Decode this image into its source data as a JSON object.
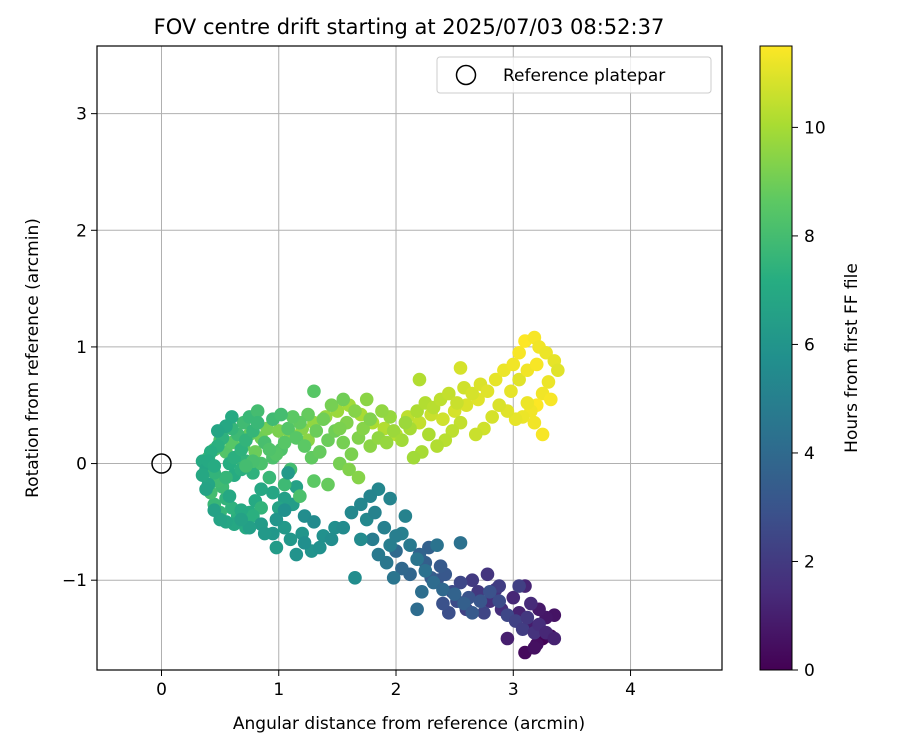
{
  "chart_data": {
    "type": "scatter",
    "title": "FOV centre drift starting at 2025/07/03 08:52:37",
    "xlabel": "Angular distance from reference (arcmin)",
    "ylabel": "Rotation from reference (arcmin)",
    "xlim": [
      -0.55,
      4.78
    ],
    "ylim": [
      -1.77,
      3.58
    ],
    "xticks": [
      0,
      1,
      2,
      3,
      4
    ],
    "yticks": [
      -1,
      0,
      1,
      2,
      3
    ],
    "grid": true,
    "legend": {
      "position": "upper right",
      "entries": [
        "Reference platepar"
      ]
    },
    "reference_point": {
      "x": 0,
      "y": 0,
      "marker": "open-circle"
    },
    "colorbar": {
      "label": "Hours from first FF file",
      "colormap": "viridis",
      "range": [
        0,
        11.5
      ],
      "ticks": [
        0,
        2,
        4,
        6,
        8,
        10
      ]
    },
    "points": [
      [
        3.25,
        -1.5,
        0.1
      ],
      [
        3.32,
        -1.48,
        0.2
      ],
      [
        3.1,
        -1.62,
        0.3
      ],
      [
        3.2,
        -1.55,
        0.4
      ],
      [
        3.18,
        -1.58,
        0.5
      ],
      [
        3.35,
        -1.3,
        0.6
      ],
      [
        3.28,
        -1.32,
        0.7
      ],
      [
        3.22,
        -1.25,
        0.8
      ],
      [
        3.15,
        -1.4,
        0.9
      ],
      [
        2.95,
        -1.5,
        1.0
      ],
      [
        3.05,
        -1.28,
        1.1
      ],
      [
        3.1,
        -1.05,
        1.2
      ],
      [
        3.0,
        -1.15,
        1.3
      ],
      [
        3.15,
        -1.2,
        1.4
      ],
      [
        2.9,
        -1.25,
        1.5
      ],
      [
        2.8,
        -1.18,
        1.6
      ],
      [
        2.85,
        -1.08,
        1.7
      ],
      [
        2.78,
        -0.95,
        1.8
      ],
      [
        2.7,
        -1.1,
        1.9
      ],
      [
        2.65,
        -1.0,
        2.0
      ],
      [
        2.88,
        -1.05,
        2.1
      ],
      [
        3.05,
        -1.05,
        2.2
      ],
      [
        2.6,
        -1.25,
        2.3
      ],
      [
        2.75,
        -1.28,
        2.4
      ],
      [
        2.55,
        -1.02,
        2.5
      ],
      [
        2.48,
        -1.1,
        2.6
      ],
      [
        2.52,
        -1.18,
        2.7
      ],
      [
        2.45,
        -1.28,
        2.8
      ],
      [
        2.4,
        -1.2,
        2.9
      ],
      [
        2.62,
        -1.15,
        3.0
      ],
      [
        2.35,
        -1.0,
        3.1
      ],
      [
        2.42,
        -0.95,
        3.2
      ],
      [
        2.38,
        -0.88,
        3.3
      ],
      [
        2.3,
        -0.98,
        3.4
      ],
      [
        2.25,
        -0.85,
        3.5
      ],
      [
        2.28,
        -0.72,
        3.6
      ],
      [
        2.2,
        -0.78,
        3.7
      ],
      [
        2.12,
        -0.95,
        3.8
      ],
      [
        2.05,
        -0.9,
        3.9
      ],
      [
        2.0,
        -0.75,
        4.0
      ],
      [
        2.18,
        -1.25,
        4.1
      ],
      [
        2.22,
        -1.1,
        4.2
      ],
      [
        2.55,
        -0.68,
        4.3
      ],
      [
        2.35,
        -0.7,
        4.4
      ],
      [
        1.98,
        -0.98,
        4.5
      ],
      [
        1.92,
        -0.85,
        4.6
      ],
      [
        1.85,
        -0.78,
        4.7
      ],
      [
        1.8,
        -0.65,
        4.8
      ],
      [
        1.95,
        -0.7,
        4.9
      ],
      [
        2.05,
        -0.6,
        5.0
      ],
      [
        2.08,
        -0.45,
        5.1
      ],
      [
        1.95,
        -0.3,
        5.2
      ],
      [
        1.85,
        -0.22,
        5.3
      ],
      [
        1.75,
        -0.48,
        5.4
      ],
      [
        1.7,
        -0.65,
        5.5
      ],
      [
        1.65,
        -0.98,
        5.6
      ],
      [
        1.48,
        -0.55,
        5.7
      ],
      [
        1.38,
        -0.62,
        5.8
      ],
      [
        1.28,
        -0.75,
        5.9
      ],
      [
        1.2,
        -0.6,
        6.0
      ],
      [
        1.1,
        -0.65,
        6.1
      ],
      [
        1.05,
        -0.55,
        6.2
      ],
      [
        0.98,
        -0.72,
        6.3
      ],
      [
        1.12,
        -0.35,
        6.4
      ],
      [
        1.05,
        -0.3,
        6.5
      ],
      [
        1.15,
        -0.2,
        6.6
      ],
      [
        1.0,
        -0.38,
        6.7
      ],
      [
        0.95,
        -0.25,
        6.8
      ],
      [
        0.85,
        -0.22,
        6.9
      ],
      [
        0.8,
        -0.32,
        7.0
      ],
      [
        0.75,
        -0.42,
        7.1
      ],
      [
        0.7,
        -0.5,
        7.2
      ],
      [
        0.65,
        -0.45,
        7.3
      ],
      [
        0.6,
        -0.38,
        7.4
      ],
      [
        0.55,
        -0.3,
        7.5
      ],
      [
        0.5,
        -0.42,
        7.6
      ],
      [
        0.45,
        -0.35,
        7.7
      ],
      [
        0.52,
        -0.2,
        7.8
      ],
      [
        0.48,
        -0.15,
        7.9
      ],
      [
        0.42,
        -0.25,
        8.0
      ],
      [
        0.4,
        0.05,
        8.1
      ],
      [
        0.45,
        0.12,
        8.2
      ],
      [
        0.5,
        0.2,
        8.3
      ],
      [
        0.55,
        0.1,
        8.4
      ],
      [
        0.6,
        0.18,
        8.5
      ],
      [
        0.65,
        0.05,
        8.6
      ],
      [
        0.7,
        0.15,
        8.7
      ],
      [
        0.75,
        0.25,
        8.8
      ],
      [
        0.8,
        0.1,
        8.9
      ],
      [
        0.85,
        0.22,
        9.0
      ],
      [
        0.9,
        0.3,
        9.1
      ],
      [
        1.0,
        0.28,
        9.2
      ],
      [
        1.1,
        0.25,
        9.3
      ],
      [
        1.2,
        0.3,
        9.4
      ],
      [
        1.25,
        0.2,
        9.5
      ],
      [
        1.3,
        0.35,
        9.6
      ],
      [
        1.4,
        0.4,
        9.7
      ],
      [
        1.5,
        0.45,
        9.8
      ],
      [
        1.6,
        0.5,
        9.9
      ],
      [
        1.7,
        0.42,
        10.0
      ],
      [
        1.8,
        0.35,
        10.1
      ],
      [
        1.9,
        0.3,
        10.2
      ],
      [
        2.0,
        0.25,
        10.3
      ],
      [
        2.1,
        0.4,
        10.4
      ],
      [
        2.2,
        0.35,
        10.5
      ],
      [
        2.3,
        0.42,
        10.6
      ],
      [
        2.4,
        0.38,
        10.7
      ],
      [
        2.5,
        0.45,
        10.8
      ],
      [
        2.6,
        0.5,
        10.9
      ],
      [
        2.7,
        0.55,
        11.0
      ],
      [
        0.35,
        0.02,
        7.0
      ],
      [
        0.38,
        -0.05,
        6.8
      ],
      [
        0.58,
        0.0,
        7.2
      ],
      [
        0.62,
        -0.1,
        7.1
      ],
      [
        0.68,
        -0.05,
        7.3
      ],
      [
        0.72,
        0.02,
        7.5
      ],
      [
        0.78,
        -0.08,
        7.4
      ],
      [
        0.55,
        -0.12,
        7.6
      ],
      [
        0.45,
        -0.08,
        7.5
      ],
      [
        0.65,
        0.25,
        7.8
      ],
      [
        0.7,
        0.35,
        7.9
      ],
      [
        0.75,
        0.4,
        7.7
      ],
      [
        0.82,
        0.45,
        8.0
      ],
      [
        0.6,
        0.3,
        7.6
      ],
      [
        0.52,
        0.22,
        7.4
      ],
      [
        0.48,
        0.15,
        7.3
      ],
      [
        0.42,
        0.1,
        7.2
      ],
      [
        0.88,
        0.18,
        8.1
      ],
      [
        0.95,
        0.05,
        8.2
      ],
      [
        1.02,
        0.12,
        8.3
      ],
      [
        1.08,
        0.3,
        8.4
      ],
      [
        1.15,
        0.22,
        8.5
      ],
      [
        1.22,
        0.15,
        8.6
      ],
      [
        1.28,
        0.05,
        8.7
      ],
      [
        1.35,
        0.1,
        8.8
      ],
      [
        1.42,
        0.2,
        8.9
      ],
      [
        1.48,
        0.28,
        9.0
      ],
      [
        1.55,
        0.18,
        9.1
      ],
      [
        1.62,
        0.08,
        9.2
      ],
      [
        1.68,
        0.22,
        9.3
      ],
      [
        1.72,
        0.3,
        9.4
      ],
      [
        1.78,
        0.15,
        9.5
      ],
      [
        1.85,
        0.22,
        9.6
      ],
      [
        1.92,
        0.18,
        9.7
      ],
      [
        1.98,
        0.28,
        9.8
      ],
      [
        2.05,
        0.2,
        9.9
      ],
      [
        2.12,
        0.3,
        10.0
      ],
      [
        2.18,
        0.45,
        10.1
      ],
      [
        2.25,
        0.52,
        10.2
      ],
      [
        2.32,
        0.48,
        10.3
      ],
      [
        2.38,
        0.55,
        10.4
      ],
      [
        2.45,
        0.6,
        10.5
      ],
      [
        2.52,
        0.52,
        10.6
      ],
      [
        2.58,
        0.65,
        10.7
      ],
      [
        2.65,
        0.6,
        10.8
      ],
      [
        2.72,
        0.68,
        10.9
      ],
      [
        2.78,
        0.62,
        11.0
      ],
      [
        2.85,
        0.72,
        11.1
      ],
      [
        2.92,
        0.8,
        11.2
      ],
      [
        3.0,
        0.85,
        11.3
      ],
      [
        3.05,
        0.95,
        11.4
      ],
      [
        3.1,
        1.05,
        11.5
      ],
      [
        3.18,
        1.08,
        11.4
      ],
      [
        3.22,
        1.0,
        11.3
      ],
      [
        3.28,
        0.95,
        11.2
      ],
      [
        3.35,
        0.88,
        11.1
      ],
      [
        3.38,
        0.8,
        11.0
      ],
      [
        3.3,
        0.7,
        11.2
      ],
      [
        3.25,
        0.6,
        11.3
      ],
      [
        3.32,
        0.55,
        11.4
      ],
      [
        3.2,
        0.5,
        11.5
      ],
      [
        3.15,
        0.45,
        11.3
      ],
      [
        3.08,
        0.4,
        11.2
      ],
      [
        3.02,
        0.38,
        11.1
      ],
      [
        2.95,
        0.45,
        11.0
      ],
      [
        2.88,
        0.5,
        10.9
      ],
      [
        2.82,
        0.4,
        10.8
      ],
      [
        2.75,
        0.3,
        10.7
      ],
      [
        2.68,
        0.25,
        10.6
      ],
      [
        3.25,
        0.25,
        11.4
      ],
      [
        3.18,
        0.35,
        11.3
      ],
      [
        3.12,
        0.52,
        11.2
      ],
      [
        2.98,
        0.62,
        11.1
      ],
      [
        3.05,
        0.72,
        11.0
      ],
      [
        3.12,
        0.8,
        11.3
      ],
      [
        3.2,
        0.85,
        11.4
      ],
      [
        2.55,
        0.35,
        10.5
      ],
      [
        2.48,
        0.28,
        10.4
      ],
      [
        2.42,
        0.2,
        10.3
      ],
      [
        2.35,
        0.15,
        10.2
      ],
      [
        2.28,
        0.25,
        10.1
      ],
      [
        2.22,
        0.1,
        10.0
      ],
      [
        2.15,
        0.05,
        9.9
      ],
      [
        2.08,
        0.35,
        9.8
      ],
      [
        1.95,
        0.4,
        9.7
      ],
      [
        1.88,
        0.45,
        9.6
      ],
      [
        1.75,
        0.55,
        9.5
      ],
      [
        1.65,
        0.45,
        9.4
      ],
      [
        1.58,
        0.35,
        9.3
      ],
      [
        1.52,
        0.3,
        9.2
      ],
      [
        1.45,
        0.5,
        9.1
      ],
      [
        1.38,
        0.38,
        9.0
      ],
      [
        1.32,
        0.28,
        8.9
      ],
      [
        1.25,
        0.42,
        8.8
      ],
      [
        1.18,
        0.35,
        8.7
      ],
      [
        1.12,
        0.4,
        8.6
      ],
      [
        1.05,
        0.18,
        8.5
      ],
      [
        0.98,
        0.08,
        8.4
      ],
      [
        0.92,
        0.12,
        8.3
      ],
      [
        0.85,
        0.0,
        8.2
      ],
      [
        0.78,
        0.02,
        8.1
      ],
      [
        0.72,
        -0.02,
        8.0
      ],
      [
        1.3,
        0.62,
        8.5
      ],
      [
        1.55,
        0.55,
        9.0
      ],
      [
        1.78,
        0.38,
        9.3
      ],
      [
        2.2,
        0.72,
        10.2
      ],
      [
        2.55,
        0.82,
        10.8
      ],
      [
        1.52,
        0.0,
        9.1
      ],
      [
        1.6,
        -0.05,
        9.3
      ],
      [
        1.68,
        -0.12,
        9.4
      ],
      [
        1.42,
        -0.18,
        8.8
      ],
      [
        1.3,
        -0.15,
        8.6
      ],
      [
        1.18,
        -0.28,
        8.2
      ],
      [
        1.1,
        -0.05,
        8.0
      ],
      [
        1.05,
        -0.18,
        7.8
      ],
      [
        0.92,
        -0.12,
        7.7
      ],
      [
        0.85,
        -0.38,
        7.5
      ],
      [
        0.78,
        -0.45,
        7.3
      ],
      [
        0.72,
        -0.55,
        7.1
      ],
      [
        0.68,
        -0.4,
        7.0
      ],
      [
        0.62,
        -0.52,
        6.9
      ],
      [
        0.55,
        -0.5,
        6.8
      ],
      [
        0.5,
        -0.48,
        6.7
      ],
      [
        0.45,
        -0.4,
        6.6
      ],
      [
        0.58,
        -0.28,
        6.9
      ],
      [
        0.4,
        -0.18,
        6.8
      ],
      [
        0.38,
        -0.22,
        6.7
      ],
      [
        0.35,
        -0.1,
        6.9
      ],
      [
        0.4,
        0.02,
        7.0
      ],
      [
        0.45,
        -0.02,
        7.1
      ],
      [
        0.62,
        0.05,
        7.3
      ],
      [
        0.68,
        0.12,
        7.4
      ],
      [
        0.72,
        0.2,
        7.5
      ],
      [
        0.78,
        0.28,
        7.6
      ],
      [
        0.82,
        0.35,
        7.7
      ],
      [
        0.6,
        0.4,
        7.0
      ],
      [
        0.55,
        0.32,
        6.9
      ],
      [
        0.48,
        0.28,
        6.8
      ],
      [
        0.95,
        0.38,
        7.9
      ],
      [
        1.02,
        0.42,
        8.0
      ],
      [
        1.08,
        -0.08,
        6.2
      ],
      [
        0.98,
        -0.48,
        6.0
      ],
      [
        1.05,
        -0.4,
        5.8
      ],
      [
        1.22,
        -0.45,
        5.6
      ],
      [
        1.3,
        -0.5,
        5.5
      ],
      [
        0.95,
        -0.6,
        6.1
      ],
      [
        0.85,
        -0.52,
        6.3
      ],
      [
        0.75,
        -0.55,
        6.5
      ],
      [
        0.68,
        -0.48,
        6.6
      ],
      [
        0.88,
        -0.6,
        6.2
      ],
      [
        1.15,
        -0.78,
        5.9
      ],
      [
        1.22,
        -0.68,
        5.7
      ],
      [
        1.35,
        -0.72,
        5.8
      ],
      [
        1.45,
        -0.65,
        5.6
      ],
      [
        1.55,
        -0.55,
        5.5
      ],
      [
        1.62,
        -0.42,
        5.4
      ],
      [
        1.7,
        -0.35,
        5.3
      ],
      [
        1.78,
        -0.28,
        5.2
      ],
      [
        1.82,
        -0.42,
        5.1
      ],
      [
        1.9,
        -0.55,
        5.0
      ],
      [
        2.0,
        -0.62,
        4.9
      ],
      [
        2.12,
        -0.7,
        4.7
      ],
      [
        2.18,
        -0.82,
        4.5
      ],
      [
        2.25,
        -0.92,
        4.3
      ],
      [
        2.32,
        -1.02,
        4.1
      ],
      [
        2.4,
        -1.08,
        3.9
      ],
      [
        2.5,
        -1.12,
        3.7
      ],
      [
        2.58,
        -1.2,
        3.5
      ],
      [
        2.65,
        -1.28,
        3.3
      ],
      [
        2.72,
        -1.18,
        3.1
      ],
      [
        2.8,
        -1.1,
        2.9
      ],
      [
        2.88,
        -1.18,
        2.7
      ],
      [
        2.95,
        -1.3,
        2.5
      ],
      [
        3.02,
        -1.35,
        2.3
      ],
      [
        3.08,
        -1.42,
        2.1
      ],
      [
        3.12,
        -1.32,
        1.9
      ],
      [
        3.18,
        -1.45,
        1.7
      ],
      [
        3.22,
        -1.38,
        1.5
      ],
      [
        3.28,
        -1.45,
        1.3
      ],
      [
        3.35,
        -1.5,
        1.1
      ]
    ]
  }
}
